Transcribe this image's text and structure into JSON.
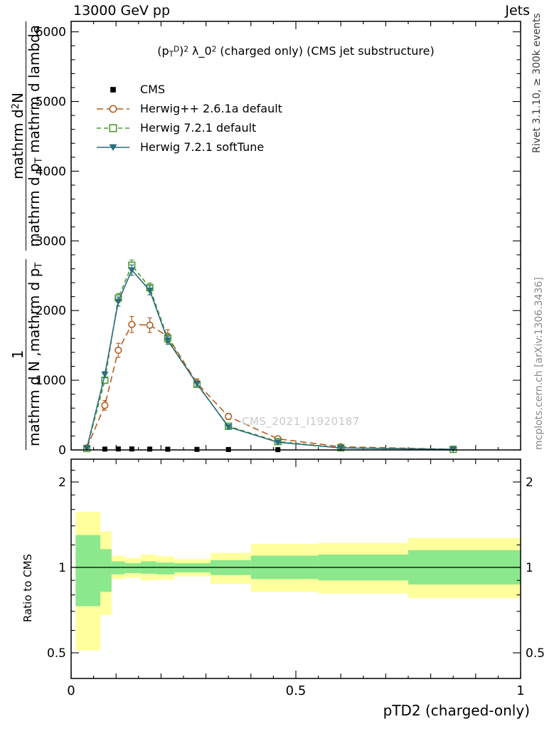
{
  "header": {
    "left": "13000 GeV pp",
    "right": "Jets"
  },
  "title": {
    "open": "(p",
    "sub_t": "T",
    "sup_d": "D",
    "close": ")",
    "sup2": "2",
    "lambda": " λ_0",
    "sup2b": "2",
    "rest": " (charged only) (CMS jet substructure)"
  },
  "legend": {
    "items": [
      {
        "label": "CMS"
      },
      {
        "label": "Herwig++ 2.6.1a default"
      },
      {
        "label": "Herwig 7.2.1 default"
      },
      {
        "label": "Herwig 7.2.1 softTune"
      }
    ]
  },
  "watermark": "CMS_2021_I1920187",
  "side_notes": {
    "right_top": "Rivet 3.1.10, ≥ 300k events",
    "right_bottom": "mcplots.cern.ch [arXiv:1306.3436]"
  },
  "y_axis_label": {
    "frac1_num": "1",
    "frac1_den": "mathrm d N ,mathrm d p",
    "frac1_den_sub": "T",
    "frac2_num_a": "mathrm d",
    "frac2_num_sup": "2",
    "frac2_num_b": "N",
    "frac2_den_a": "mathrm d p",
    "frac2_den_sub": "T",
    "frac2_den_b": " mathrm d lambda"
  },
  "ratio_panel_label": "Ratio to CMS",
  "x_axis_title": "pTD2 (charged-only)",
  "chart_data": {
    "type": "line",
    "title": "(p_T^D)^2 λ_0^2 (charged only) (CMS jet substructure)",
    "xlabel": "pTD2 (charged-only)",
    "ylabel": "1/(dN/dpT) d^2N/(dpT dlambda)",
    "ratio_ylabel": "Ratio to CMS",
    "xlim": [
      0,
      1
    ],
    "ylim": [
      0,
      6150
    ],
    "x_ticks": [
      0,
      0.5,
      1
    ],
    "x_tick_labels": [
      "0",
      "0.5",
      "1"
    ],
    "y_ticks": [
      0,
      1000,
      2000,
      3000,
      4000,
      5000,
      6000
    ],
    "x": [
      0.035,
      0.075,
      0.105,
      0.135,
      0.175,
      0.215,
      0.28,
      0.35,
      0.46,
      0.6,
      0.85
    ],
    "series": [
      {
        "name": "CMS",
        "color": "#000000",
        "marker": "square-filled",
        "line": "none",
        "dash": "",
        "values": [
          8,
          12,
          14,
          14,
          12,
          10,
          8,
          6,
          4,
          null,
          null
        ],
        "errors": [
          3,
          3,
          3,
          3,
          3,
          2,
          2,
          1,
          1,
          null,
          null
        ]
      },
      {
        "name": "Herwig++ 2.6.1a default",
        "color": "#b35d1e",
        "marker": "circle-open",
        "line": "dashed",
        "dash": "9 5",
        "values": [
          30,
          640,
          1430,
          1800,
          1790,
          1630,
          960,
          480,
          160,
          45,
          10
        ],
        "errors": [
          15,
          70,
          100,
          115,
          105,
          95,
          60,
          45,
          25,
          12,
          5
        ]
      },
      {
        "name": "Herwig 7.2.1 default",
        "color": "#4a9c2f",
        "marker": "square-open",
        "line": "dashed",
        "dash": "6 4",
        "values": [
          20,
          1000,
          2180,
          2650,
          2330,
          1600,
          940,
          340,
          120,
          30,
          8
        ],
        "errors": [
          8,
          45,
          65,
          75,
          65,
          55,
          35,
          25,
          15,
          8,
          3
        ]
      },
      {
        "name": "Herwig 7.2.1 softTune",
        "color": "#2c6c7c",
        "marker": "triangle-down-filled",
        "line": "solid",
        "dash": "",
        "values": [
          25,
          1080,
          2130,
          2580,
          2290,
          1570,
          950,
          330,
          110,
          28,
          8
        ],
        "errors": [
          8,
          45,
          65,
          75,
          65,
          55,
          35,
          25,
          15,
          8,
          3
        ]
      }
    ],
    "ratio": {
      "scale": "log",
      "y_ticks": [
        0.5,
        1,
        2
      ],
      "y_tick_labels": [
        "0.5",
        "1",
        "2"
      ],
      "bands": [
        {
          "x0": 0.01,
          "x1": 0.065,
          "yellow": [
            0.51,
            1.57
          ],
          "green": [
            0.73,
            1.3
          ]
        },
        {
          "x0": 0.065,
          "x1": 0.09,
          "yellow": [
            0.68,
            1.34
          ],
          "green": [
            0.82,
            1.16
          ]
        },
        {
          "x0": 0.09,
          "x1": 0.12,
          "yellow": [
            0.91,
            1.1
          ],
          "green": [
            0.945,
            1.05
          ]
        },
        {
          "x0": 0.12,
          "x1": 0.155,
          "yellow": [
            0.92,
            1.08
          ],
          "green": [
            0.955,
            1.035
          ]
        },
        {
          "x0": 0.155,
          "x1": 0.19,
          "yellow": [
            0.9,
            1.11
          ],
          "green": [
            0.95,
            1.05
          ]
        },
        {
          "x0": 0.19,
          "x1": 0.23,
          "yellow": [
            0.905,
            1.095
          ],
          "green": [
            0.945,
            1.04
          ]
        },
        {
          "x0": 0.23,
          "x1": 0.31,
          "yellow": [
            0.93,
            1.07
          ],
          "green": [
            0.96,
            1.035
          ]
        },
        {
          "x0": 0.31,
          "x1": 0.4,
          "yellow": [
            0.875,
            1.125
          ],
          "green": [
            0.94,
            1.06
          ]
        },
        {
          "x0": 0.4,
          "x1": 0.55,
          "yellow": [
            0.82,
            1.21
          ],
          "green": [
            0.91,
            1.1
          ]
        },
        {
          "x0": 0.55,
          "x1": 0.75,
          "yellow": [
            0.81,
            1.22
          ],
          "green": [
            0.9,
            1.11
          ]
        },
        {
          "x0": 0.75,
          "x1": 1.0,
          "yellow": [
            0.78,
            1.27
          ],
          "green": [
            0.87,
            1.15
          ]
        }
      ]
    }
  }
}
